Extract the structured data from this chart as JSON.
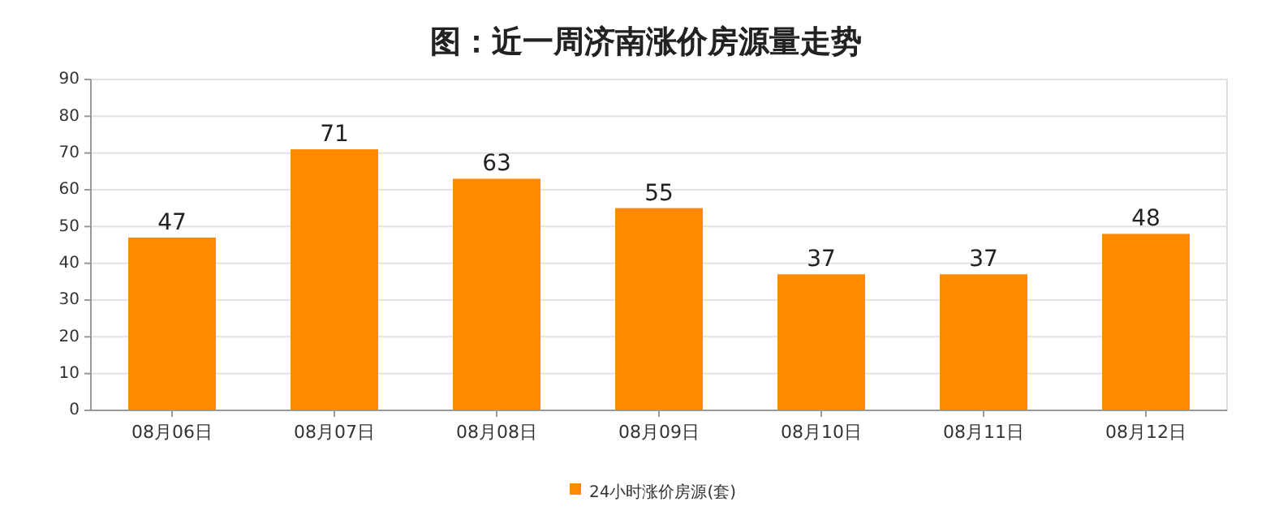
{
  "chart_data": {
    "type": "bar",
    "title": "图：近一周济南涨价房源量走势",
    "categories": [
      "08月06日",
      "08月07日",
      "08月08日",
      "08月09日",
      "08月10日",
      "08月11日",
      "08月12日"
    ],
    "series": [
      {
        "name": "24小时涨价房源(套)",
        "color": "#ff8a00",
        "values": [
          47,
          71,
          63,
          55,
          37,
          37,
          48
        ]
      }
    ],
    "ylim": [
      0,
      90
    ],
    "yticks": [
      0,
      10,
      20,
      30,
      40,
      50,
      60,
      70,
      80,
      90
    ],
    "grid": "y",
    "legend": "bottom",
    "data_labels": true
  }
}
